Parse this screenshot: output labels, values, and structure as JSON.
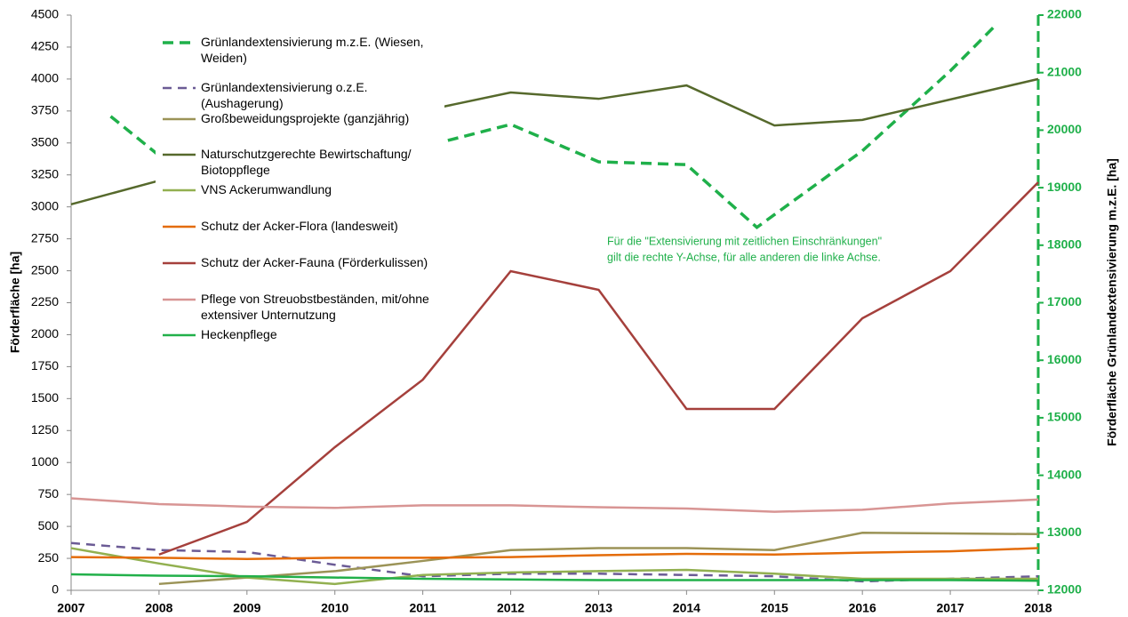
{
  "chart_data": {
    "type": "line",
    "y_label": "Förderfläche [ha]",
    "y2_label": "Förderfläche Grünlandextensivierung m.z.E. [ha]",
    "annotation": [
      "Für die \"Extensivierung mit zeitlichen Einschränkungen\"",
      "gilt die rechte  Y-Achse, für alle anderen die linke Achse."
    ],
    "x": [
      2007,
      2008,
      2009,
      2010,
      2011,
      2012,
      2013,
      2014,
      2015,
      2016,
      2017,
      2018
    ],
    "xlim": [
      2007,
      2018
    ],
    "xticks": [
      2007,
      2008,
      2009,
      2010,
      2011,
      2012,
      2013,
      2014,
      2015,
      2016,
      2017,
      2018
    ],
    "ylim": [
      0,
      4500
    ],
    "yticks": [
      0,
      250,
      500,
      750,
      1000,
      1250,
      1500,
      1750,
      2000,
      2250,
      2500,
      2750,
      3000,
      3250,
      3500,
      3750,
      4000,
      4250,
      4500
    ],
    "y2lim": [
      12000,
      22000
    ],
    "y2ticks": [
      12000,
      13000,
      14000,
      15000,
      16000,
      17000,
      18000,
      19000,
      20000,
      21000,
      22000
    ],
    "y2_color": "#1fb04a",
    "grid": false,
    "series": [
      {
        "name": "Grünlandextensivierung m.z.E. (Wiesen, Weiden)",
        "color": "#1fb04a",
        "style": "dashed",
        "axis": "y2",
        "x": [
          2007.45,
          2008,
          2009,
          2010,
          2011,
          2012,
          2013,
          2014,
          2014.8,
          2016,
          2017,
          2017.5
        ],
        "values": [
          20240,
          19560,
          19300,
          19500,
          19710,
          20100,
          19450,
          19400,
          18310,
          19640,
          21030,
          21800
        ]
      },
      {
        "name": "Grünlandextensivierung o.z.E. (Aushagerung)",
        "color": "#6b5b95",
        "style": "dashed",
        "values": [
          370,
          315,
          300,
          200,
          110,
          130,
          130,
          120,
          110,
          70,
          90,
          110
        ]
      },
      {
        "name": "Großbeweidungsprojekte (ganzjährig)",
        "color": "#9b9357",
        "style": "solid",
        "values": [
          null,
          50,
          100,
          150,
          230,
          315,
          330,
          330,
          315,
          450,
          445,
          440
        ]
      },
      {
        "name": "Naturschutzgerechte Bewirtschaftung/ Biotoppflege",
        "color": "#56692c",
        "style": "solid",
        "values": [
          3020,
          3205,
          3350,
          3550,
          3750,
          3895,
          3845,
          3950,
          3637,
          3680,
          3840,
          4000
        ]
      },
      {
        "name": "VNS Ackerumwandlung",
        "color": "#92b050",
        "style": "solid",
        "values": [
          330,
          210,
          100,
          50,
          120,
          140,
          150,
          160,
          130,
          90,
          90,
          90
        ]
      },
      {
        "name": "Schutz der Acker-Flora (landesweit)",
        "color": "#e46c0a",
        "style": "solid",
        "values": [
          260,
          255,
          245,
          255,
          255,
          260,
          275,
          285,
          280,
          295,
          305,
          330
        ]
      },
      {
        "name": "Schutz der Acker-Fauna (Förderkulissen)",
        "color": "#a5403c",
        "style": "solid",
        "values": [
          null,
          280,
          535,
          1120,
          1648,
          2497,
          2351,
          1419,
          1419,
          2128,
          2497,
          3192
        ]
      },
      {
        "name": "Pflege von Streuobstbeständen, mit/ohne extensiver Unternutzung",
        "color": "#d89594",
        "style": "solid",
        "values": [
          720,
          675,
          655,
          645,
          665,
          665,
          650,
          640,
          615,
          630,
          680,
          710
        ]
      },
      {
        "name": "Heckenpflege",
        "color": "#22b04a",
        "style": "solid",
        "values": [
          125,
          115,
          110,
          100,
          90,
          85,
          80,
          80,
          80,
          80,
          80,
          75
        ]
      }
    ]
  }
}
